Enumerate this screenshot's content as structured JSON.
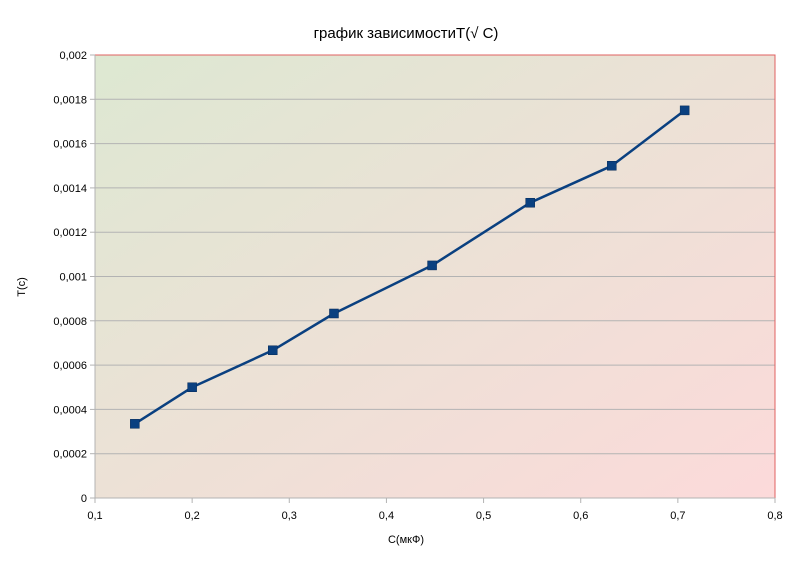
{
  "chart_data": {
    "type": "line",
    "title": "график зависимостиT(√ C)",
    "xlabel": "C(мкФ)",
    "ylabel": "T(c)",
    "xlim": [
      0.1,
      0.8
    ],
    "ylim": [
      0,
      0.002
    ],
    "x_ticks": [
      "0,1",
      "0,2",
      "0,3",
      "0,4",
      "0,5",
      "0,6",
      "0,7",
      "0,8"
    ],
    "y_ticks": [
      "0",
      "0,0002",
      "0,0004",
      "0,0006",
      "0,0008",
      "0,001",
      "0,0012",
      "0,0014",
      "0,0016",
      "0,0018",
      "0,002"
    ],
    "grid": "horizontal",
    "legend": "none",
    "series": [
      {
        "color": "#0a4080",
        "marker": "square",
        "x": [
          0.141,
          0.2,
          0.283,
          0.346,
          0.447,
          0.548,
          0.632,
          0.707
        ],
        "y": [
          0.000335,
          0.0005,
          0.000667,
          0.000833,
          0.00105,
          0.001333,
          0.0015,
          0.00175
        ]
      }
    ],
    "colors": {
      "plot_gradient_start": "#dde8d2",
      "plot_gradient_end": "#fcdada",
      "plot_border": "#e06060",
      "gridline": "#b3b3b3",
      "axis": "#b3b3b3",
      "line": "#0a4080",
      "marker": "#0a4080"
    }
  }
}
